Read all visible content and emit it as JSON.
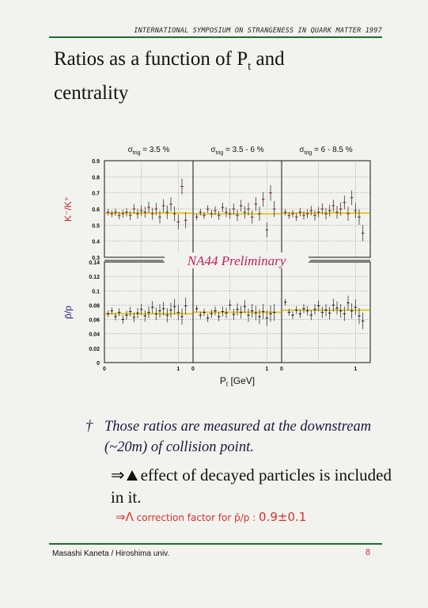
{
  "header": {
    "conference": "INTERNATIONAL SYMPOSIUM ON STRANGENESS IN QUARK MATTER 1997"
  },
  "slide": {
    "title_line1": "Ratios as a function of P",
    "title_sub": "t",
    "title_line1_end": " and",
    "title_line2": "centrality"
  },
  "colors": {
    "rule": "#1e6b2e",
    "kaon_label": "#c0302a",
    "pbar_label": "#2b2b80",
    "fit_line": "#e6c62a",
    "preliminary": "#c0205a",
    "handwriting": "#d8322a"
  },
  "chart_data": {
    "type": "scatter",
    "panels_columns": [
      {
        "label_prefix": "σ",
        "label_sub": "trig",
        "label_value": " = 3.5 %"
      },
      {
        "label_prefix": "σ",
        "label_sub": "trig",
        "label_value": " = 3.5 - 6 %"
      },
      {
        "label_prefix": "σ",
        "label_sub": "trig",
        "label_value": " = 6 - 8.5 %"
      }
    ],
    "rows": [
      {
        "ylabel": "K⁻/K⁺",
        "ylim": [
          0.3,
          0.9
        ],
        "yticks": [
          "0.9",
          "0.8",
          "0.7",
          "0.6",
          "0.5",
          "0.4",
          "0.3"
        ],
        "fit_values": [
          0.575,
          0.57,
          0.575
        ],
        "series": [
          {
            "name": "",
            "x": [
              0.05,
              0.1,
              0.15,
              0.2,
              0.25,
              0.3,
              0.35,
              0.4,
              0.45,
              0.5,
              0.55,
              0.6,
              0.65,
              0.7,
              0.75,
              0.8,
              0.85,
              0.9,
              0.95,
              1.0,
              1.05,
              1.1
            ],
            "y": [
              0.58,
              0.57,
              0.58,
              0.56,
              0.57,
              0.58,
              0.56,
              0.6,
              0.57,
              0.59,
              0.58,
              0.61,
              0.57,
              0.6,
              0.55,
              0.62,
              0.58,
              0.63,
              0.57,
              0.52,
              0.74,
              0.53
            ]
          },
          {
            "name": "",
            "x": [
              0.05,
              0.1,
              0.15,
              0.2,
              0.25,
              0.3,
              0.35,
              0.4,
              0.45,
              0.5,
              0.55,
              0.6,
              0.65,
              0.7,
              0.75,
              0.8,
              0.85,
              0.9,
              0.95,
              1.0,
              1.05,
              1.1
            ],
            "y": [
              0.55,
              0.58,
              0.56,
              0.6,
              0.57,
              0.59,
              0.56,
              0.61,
              0.58,
              0.57,
              0.6,
              0.56,
              0.62,
              0.58,
              0.6,
              0.55,
              0.63,
              0.57,
              0.66,
              0.47,
              0.7,
              0.6
            ]
          },
          {
            "name": "",
            "x": [
              0.05,
              0.1,
              0.15,
              0.2,
              0.25,
              0.3,
              0.35,
              0.4,
              0.45,
              0.5,
              0.55,
              0.6,
              0.65,
              0.7,
              0.75,
              0.8,
              0.85,
              0.9,
              0.95,
              1.0,
              1.05,
              1.1
            ],
            "y": [
              0.58,
              0.56,
              0.57,
              0.55,
              0.58,
              0.56,
              0.57,
              0.59,
              0.56,
              0.58,
              0.6,
              0.57,
              0.59,
              0.62,
              0.58,
              0.6,
              0.64,
              0.57,
              0.67,
              0.59,
              0.55,
              0.45
            ]
          }
        ]
      },
      {
        "ylabel": "p̄/p",
        "ylim": [
          0,
          0.14
        ],
        "yticks": [
          "0.14",
          "0.12",
          "0.1",
          "0.08",
          "0.06",
          "0.04",
          "0.02",
          "0"
        ],
        "fit_values": [
          0.068,
          0.07,
          0.073
        ],
        "series": [
          {
            "name": "",
            "x": [
              0.05,
              0.1,
              0.15,
              0.2,
              0.25,
              0.3,
              0.35,
              0.4,
              0.45,
              0.5,
              0.55,
              0.6,
              0.65,
              0.7,
              0.75,
              0.8,
              0.85,
              0.9,
              0.95,
              1.0,
              1.05,
              1.1
            ],
            "y": [
              0.068,
              0.072,
              0.064,
              0.07,
              0.06,
              0.066,
              0.071,
              0.063,
              0.069,
              0.074,
              0.065,
              0.07,
              0.077,
              0.068,
              0.072,
              0.075,
              0.066,
              0.073,
              0.078,
              0.07,
              0.064,
              0.079
            ]
          },
          {
            "name": "",
            "x": [
              0.05,
              0.1,
              0.15,
              0.2,
              0.25,
              0.3,
              0.35,
              0.4,
              0.45,
              0.5,
              0.55,
              0.6,
              0.65,
              0.7,
              0.75,
              0.8,
              0.85,
              0.9,
              0.95,
              1.0,
              1.05,
              1.1
            ],
            "y": [
              0.075,
              0.066,
              0.07,
              0.062,
              0.068,
              0.072,
              0.064,
              0.071,
              0.069,
              0.08,
              0.067,
              0.074,
              0.07,
              0.078,
              0.066,
              0.072,
              0.069,
              0.064,
              0.071,
              0.062,
              0.068,
              0.07
            ]
          },
          {
            "name": "",
            "x": [
              0.05,
              0.1,
              0.15,
              0.2,
              0.25,
              0.3,
              0.35,
              0.4,
              0.45,
              0.5,
              0.55,
              0.6,
              0.65,
              0.7,
              0.75,
              0.8,
              0.85,
              0.9,
              0.95,
              1.0,
              1.05,
              1.1
            ],
            "y": [
              0.084,
              0.07,
              0.066,
              0.073,
              0.068,
              0.075,
              0.072,
              0.066,
              0.074,
              0.079,
              0.07,
              0.073,
              0.069,
              0.08,
              0.076,
              0.072,
              0.068,
              0.083,
              0.072,
              0.077,
              0.065,
              0.058
            ]
          }
        ]
      }
    ],
    "xlim": [
      0,
      1.2
    ],
    "xticks": [
      "0",
      "1"
    ],
    "xlabel_main": "P",
    "xlabel_sub": "t",
    "xlabel_unit": " [GeV]",
    "annotation": "NA44 Preliminary"
  },
  "notes": {
    "dagger": "†",
    "note_text": "Those ratios are measured at the downstream (~20m) of collision point.",
    "effect_arrow": "⇒",
    "effect_text": "effect of decayed particles is included in it.",
    "hand_arrow": "⇒Λ",
    "hand_text": "correction factor for p̄/p :",
    "hand_value": "0.9±0.1"
  },
  "footer": {
    "author": "Masashi Kaneta / Hiroshima univ.",
    "page": "8"
  }
}
